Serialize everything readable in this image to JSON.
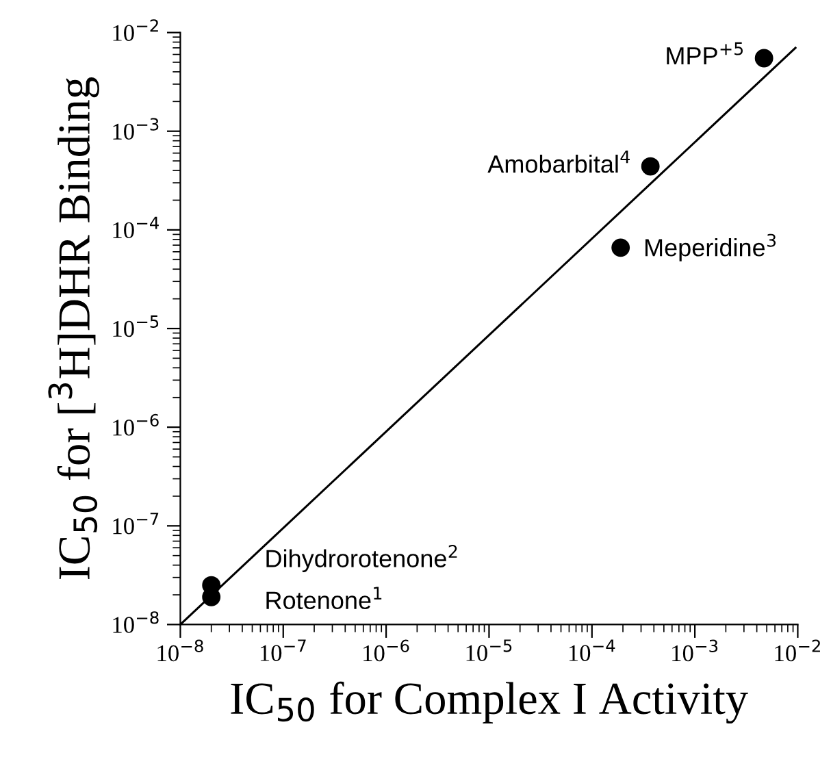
{
  "chart_data": {
    "type": "scatter",
    "xlabel": "IC$_{50}$ for Complex I Activity",
    "ylabel": "IC$_{50}$ for [$^{3}$H]DHR Binding",
    "log": "xy",
    "marker": "circle",
    "grid": false,
    "xlim": [
      1e-08,
      0.01
    ],
    "ylim": [
      1e-08,
      0.01
    ],
    "xticks": [
      {
        "value": 1e-08,
        "label": "10$^{−8}$"
      },
      {
        "value": 1e-07,
        "label": "10$^{−7}$"
      },
      {
        "value": 1e-06,
        "label": "10$^{−6}$"
      },
      {
        "value": 1e-05,
        "label": "10$^{−5}$"
      },
      {
        "value": 0.0001,
        "label": "10$^{−4}$"
      },
      {
        "value": 0.001,
        "label": "10$^{−3}$"
      },
      {
        "value": 0.01,
        "label": "10$^{−2}$"
      }
    ],
    "yticks": [
      {
        "value": 1e-08,
        "label": "10$^{−8}$"
      },
      {
        "value": 1e-07,
        "label": "10$^{−7}$"
      },
      {
        "value": 1e-06,
        "label": "10$^{−6}$"
      },
      {
        "value": 1e-05,
        "label": "10$^{−5}$"
      },
      {
        "value": 0.0001,
        "label": "10$^{−4}$"
      },
      {
        "value": 0.001,
        "label": "10$^{−3}$"
      },
      {
        "value": 0.01,
        "label": "10$^{−2}$"
      }
    ],
    "series": [
      {
        "color": "#000000",
        "x": [
          2e-08,
          2e-08,
          0.00019,
          0.00037,
          0.0047
        ],
        "values": [
          1.9e-08,
          2.5e-08,
          6.6e-05,
          0.00044,
          0.0055
        ]
      },
      {
        "type": "line",
        "color": "#000000",
        "marker": "none",
        "x": [
          1e-08,
          0.0095
        ],
        "values": [
          1e-08,
          0.007
        ]
      }
    ],
    "annotations": [
      {
        "text": "Rotenone$^{1}$",
        "x": 2e-08,
        "y": 1.9e-08
      },
      {
        "text": "Dihydrorotenone$^{2}$",
        "x": 2e-08,
        "y": 2.5e-08
      },
      {
        "text": "Meperidine$^{3}$",
        "x": 0.00019,
        "y": 6.6e-05
      },
      {
        "text": "Amobarbital$^{4}$",
        "x": 0.00037,
        "y": 0.00044
      },
      {
        "text": "MPP$^{+5}$",
        "x": 0.0047,
        "y": 0.0055
      }
    ]
  }
}
